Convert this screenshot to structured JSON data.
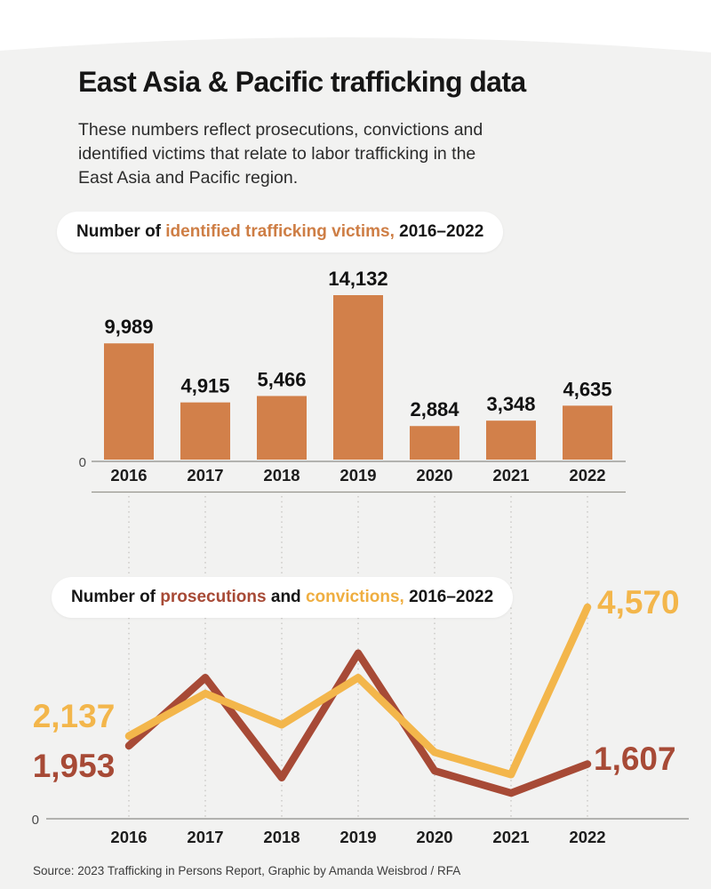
{
  "page": {
    "title": "East Asia & Pacific trafficking data",
    "subtitle_lines": [
      "These numbers reflect prosecutions, convictions and",
      "identified victims that relate to labor trafficking in the",
      "East Asia and Pacific region."
    ],
    "source": "Source: 2023 Trafficking in Persons Report, Graphic by Amanda Weisbrod / RFA"
  },
  "colors": {
    "background_arch": "#f2f2f1",
    "bar_orange": "#d2804a",
    "prosecutions_red": "#a74a36",
    "convictions_yellow": "#f3b64b",
    "text_dark": "#161616",
    "axis_gray": "#8d8b88",
    "dotted_guide_gray": "#c9c7c4"
  },
  "chart_data": [
    {
      "type": "bar",
      "title": "Number of identified trafficking victims, 2016–2022",
      "title_parts": [
        {
          "text": "Number of ",
          "color": "dark"
        },
        {
          "text": "identified trafficking victims,",
          "color": "orange"
        },
        {
          "text": " 2016–2022",
          "color": "dark"
        }
      ],
      "categories": [
        "2016",
        "2017",
        "2018",
        "2019",
        "2020",
        "2021",
        "2022"
      ],
      "values": [
        9989,
        4915,
        5466,
        14132,
        2884,
        3348,
        4635
      ],
      "value_labels": [
        "9,989",
        "4,915",
        "5,466",
        "14,132",
        "2,884",
        "3,348",
        "4,635"
      ],
      "y_zero_label": "0",
      "ylim": [
        0,
        15000
      ],
      "grid": false,
      "bar_color": "#d2804a"
    },
    {
      "type": "line",
      "title": "Number of prosecutions and convictions, 2016–2022",
      "title_parts": [
        {
          "text": "Number of ",
          "color": "dark"
        },
        {
          "text": "prosecutions",
          "color": "red"
        },
        {
          "text": " and ",
          "color": "dark"
        },
        {
          "text": "convictions,",
          "color": "yellow"
        },
        {
          "text": " 2016–2022",
          "color": "dark"
        }
      ],
      "categories": [
        "2016",
        "2017",
        "2018",
        "2019",
        "2020",
        "2021",
        "2022"
      ],
      "series": [
        {
          "name": "prosecutions",
          "color": "#a74a36",
          "values": [
            1953,
            3240,
            1350,
            3700,
            1480,
            1060,
            1607
          ],
          "labeled_values": {
            "2016": 1953,
            "2022": 1607
          },
          "first_label": "1,953",
          "last_label": "1,607"
        },
        {
          "name": "convictions",
          "color": "#f3b64b",
          "values": [
            2137,
            2940,
            2350,
            3240,
            1830,
            1410,
            4570
          ],
          "labeled_values": {
            "2016": 2137,
            "2022": 4570
          },
          "first_label": "2,137",
          "last_label": "4,570"
        }
      ],
      "y_zero_label": "0",
      "ylim": [
        0,
        5000
      ],
      "grid": false,
      "legend_position": "in-title"
    }
  ]
}
